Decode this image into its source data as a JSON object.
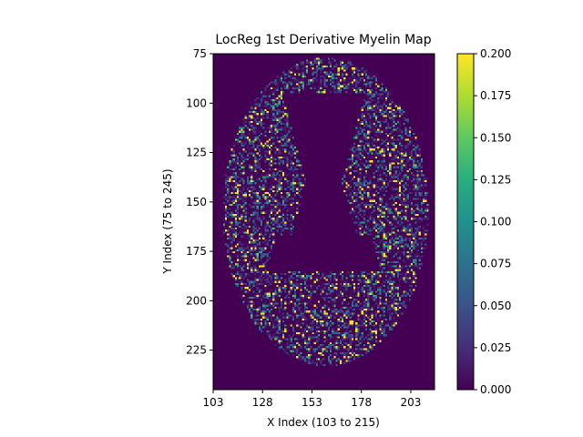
{
  "chart_data": {
    "type": "heatmap",
    "title": "LocReg 1st Derivative Myelin Map",
    "xlabel": "X Index (103 to 215)",
    "ylabel": "Y Index (75 to 245)",
    "x_range": [
      103,
      215
    ],
    "y_range": [
      75,
      245
    ],
    "xlim": [
      103,
      215
    ],
    "ylim": [
      245,
      75
    ],
    "x_ticks": [
      "103",
      "128",
      "153",
      "178",
      "203"
    ],
    "y_ticks": [
      "75",
      "100",
      "125",
      "150",
      "175",
      "200",
      "225"
    ],
    "colorbar": {
      "colormap": "viridis",
      "vmin": 0.0,
      "vmax": 0.2,
      "ticks": [
        "0.000",
        "0.025",
        "0.050",
        "0.075",
        "0.100",
        "0.125",
        "0.150",
        "0.175",
        "0.200"
      ]
    },
    "grid": false,
    "description_regions": {
      "brain_center": [
        160,
        155
      ],
      "brain_semi_axes": [
        52,
        78
      ],
      "ventricle_center_x": 159,
      "ventricle_y": [
        95,
        185
      ]
    }
  }
}
